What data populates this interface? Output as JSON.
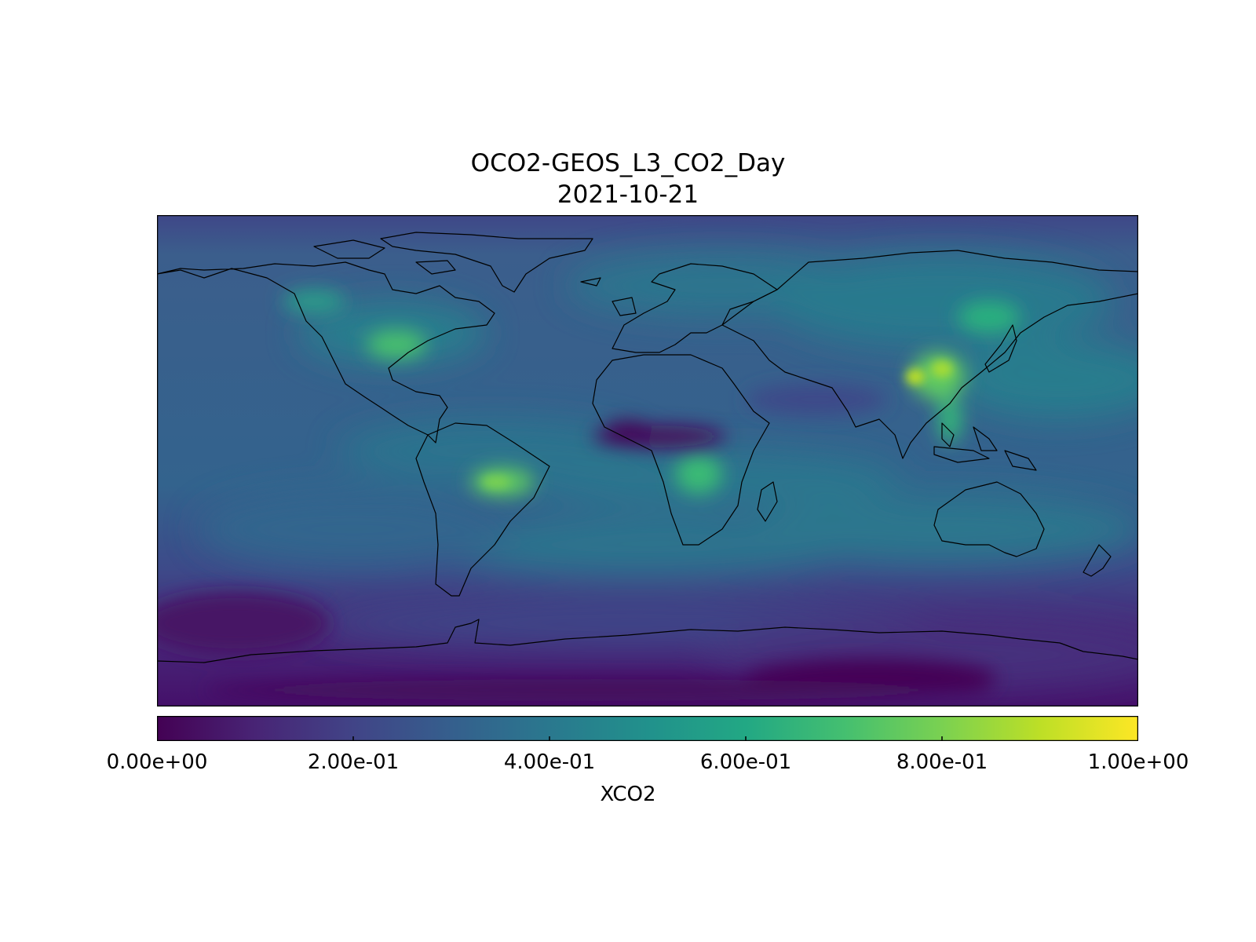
{
  "title_line1": "OCO2-GEOS_L3_CO2_Day",
  "title_line2": "2021-10-21",
  "colorbar": {
    "label": "XCO2",
    "colormap": "viridis",
    "range": [
      0.0,
      1.0
    ],
    "ticks": [
      {
        "value": 0.0,
        "label": "0.00e+00"
      },
      {
        "value": 0.2,
        "label": "2.00e-01"
      },
      {
        "value": 0.4,
        "label": "4.00e-01"
      },
      {
        "value": 0.6,
        "label": "6.00e-01"
      },
      {
        "value": 0.8,
        "label": "8.00e-01"
      },
      {
        "value": 1.0,
        "label": "1.00e+00"
      }
    ],
    "stops": [
      "#440154",
      "#3b528b",
      "#21918c",
      "#5ec962",
      "#fde725"
    ]
  },
  "map": {
    "projection": "PlateCarree",
    "background_value": 0.33,
    "features": [
      {
        "name": "east-china-high",
        "level": 0.92
      },
      {
        "name": "amazon-high",
        "level": 0.78
      },
      {
        "name": "eastern-usa-high",
        "level": 0.7
      },
      {
        "name": "central-africa-high",
        "level": 0.68
      },
      {
        "name": "sahel-low",
        "level": 0.05
      },
      {
        "name": "southern-ocean-low",
        "level": 0.12
      },
      {
        "name": "antarctica-low",
        "level": 0.03
      }
    ]
  }
}
